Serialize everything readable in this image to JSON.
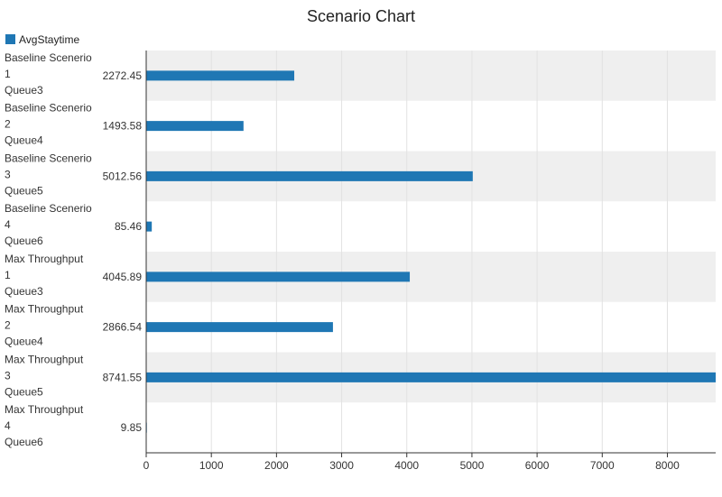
{
  "chart_data": {
    "type": "bar",
    "orientation": "horizontal",
    "title": "Scenario Chart",
    "legend": {
      "position": "top-left",
      "entries": [
        "AvgStaytime"
      ]
    },
    "colors": {
      "bar": "#1f77b4",
      "band": "#efefef"
    },
    "series": [
      {
        "name": "AvgStaytime",
        "values": [
          2272.45,
          1493.58,
          5012.56,
          85.46,
          4045.89,
          2866.54,
          8741.55,
          9.85
        ]
      }
    ],
    "categories": [
      [
        "Baseline Scenerio",
        "1",
        "Queue3"
      ],
      [
        "Baseline Scenerio",
        "2",
        "Queue4"
      ],
      [
        "Baseline Scenerio",
        "3",
        "Queue5"
      ],
      [
        "Baseline Scenerio",
        "4",
        "Queue6"
      ],
      [
        "Max Throughput",
        "1",
        "Queue3"
      ],
      [
        "Max Throughput",
        "2",
        "Queue4"
      ],
      [
        "Max Throughput",
        "3",
        "Queue5"
      ],
      [
        "Max Throughput",
        "4",
        "Queue6"
      ]
    ],
    "value_labels": [
      "2272.45",
      "1493.58",
      "5012.56",
      "85.46",
      "4045.89",
      "2866.54",
      "8741.55",
      "9.85"
    ],
    "x_ticks": [
      "0",
      "1000",
      "2000",
      "3000",
      "4000",
      "5000",
      "6000",
      "7000",
      "8000"
    ],
    "xlim": [
      0,
      8741.55
    ],
    "grid": true
  }
}
